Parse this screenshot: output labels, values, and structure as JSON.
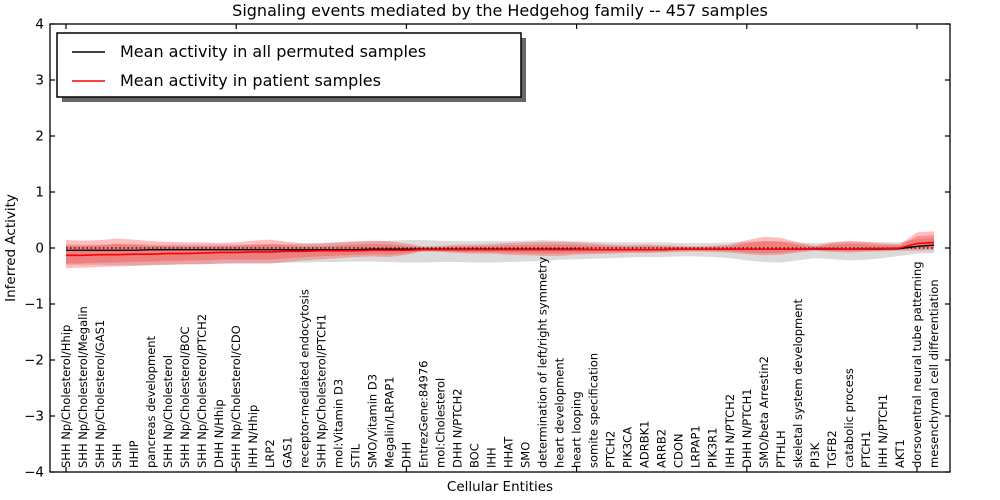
{
  "legend": {
    "entries": [
      {
        "label": "Mean activity in all permuted samples",
        "color": "#000000"
      },
      {
        "label": "Mean activity in patient samples",
        "color": "#ff0000"
      }
    ]
  },
  "colors": {
    "patient_line": "#ff0000",
    "permuted_line": "#000000",
    "patient_band": "#ff3333",
    "permuted_band": "#999999",
    "axis": "#000000",
    "background": "#ffffff"
  },
  "chart_data": {
    "type": "line",
    "title": "Signaling events mediated by the Hedgehog family -- 457 samples",
    "xlabel": "Cellular Entities",
    "ylabel": "Inferred Activity",
    "ylim": [
      -4,
      4
    ],
    "ytick_labels": [
      "4",
      "3",
      "2",
      "1",
      "0",
      "−1",
      "−2",
      "−3",
      "−4"
    ],
    "ytick_values": [
      4,
      3,
      2,
      1,
      0,
      -1,
      -2,
      -3,
      -4
    ],
    "xtick_major_indices": [
      0,
      10,
      20,
      30,
      40,
      50
    ],
    "grid": false,
    "legend_position": "upper left",
    "zero_line": {
      "style": "dotted",
      "color": "#000000",
      "y": 0
    },
    "categories": [
      "SHH Np/Cholesterol/Hhip",
      "SHH Np/Cholesterol/Megalin",
      "SHH Np/Cholesterol/GAS1",
      "SHH",
      "HHIP",
      "pancreas development",
      "SHH Np/Cholesterol",
      "SHH Np/Cholesterol/BOC",
      "SHH Np/Cholesterol/PTCH2",
      "DHH N/Hhip",
      "SHH Np/Cholesterol/CDO",
      "IHH N/Hhip",
      "LRP2",
      "GAS1",
      "receptor-mediated endocytosis",
      "SHH Np/Cholesterol/PTCH1",
      "mol:Vitamin D3",
      "STIL",
      "SMO/Vitamin D3",
      "Megalin/LRPAP1",
      "DHH",
      "EntrezGene:84976",
      "mol:Cholesterol",
      "DHH N/PTCH2",
      "BOC",
      "IHH",
      "HHAT",
      "SMO",
      "determination of left/right symmetry",
      "heart development",
      "heart looping",
      "somite specification",
      "PTCH2",
      "PIK3CA",
      "ADRBK1",
      "ARRB2",
      "CDON",
      "LRPAP1",
      "PIK3R1",
      "IHH N/PTCH2",
      "DHH N/PTCH1",
      "SMO/beta Arrestin2",
      "PTHLH",
      "skeletal system development",
      "PI3K",
      "TGFB2",
      "catabolic process",
      "PTCH1",
      "IHH N/PTCH1",
      "AKT1",
      "dorsoventral neural tube patterning",
      "mesenchymal cell differentiation"
    ],
    "series": [
      {
        "name": "Mean activity in all permuted samples",
        "color": "#000000",
        "values": [
          -0.04,
          -0.04,
          -0.04,
          -0.04,
          -0.04,
          -0.03,
          -0.03,
          -0.03,
          -0.03,
          -0.03,
          -0.03,
          -0.03,
          -0.03,
          -0.03,
          -0.03,
          -0.03,
          -0.03,
          -0.03,
          -0.02,
          -0.02,
          -0.02,
          -0.02,
          -0.02,
          -0.02,
          -0.02,
          -0.02,
          -0.02,
          -0.02,
          -0.02,
          -0.02,
          -0.02,
          -0.03,
          -0.03,
          -0.03,
          -0.03,
          -0.03,
          -0.02,
          -0.02,
          -0.02,
          -0.02,
          -0.02,
          -0.02,
          -0.02,
          -0.02,
          -0.02,
          -0.02,
          -0.02,
          -0.02,
          -0.02,
          -0.01,
          0.03,
          0.05
        ]
      },
      {
        "name": "Mean activity in patient samples",
        "color": "#ff0000",
        "values": [
          -0.13,
          -0.13,
          -0.12,
          -0.12,
          -0.11,
          -0.11,
          -0.1,
          -0.1,
          -0.09,
          -0.08,
          -0.08,
          -0.07,
          -0.07,
          -0.06,
          -0.06,
          -0.05,
          -0.05,
          -0.05,
          -0.04,
          -0.04,
          -0.04,
          -0.03,
          -0.03,
          -0.03,
          -0.03,
          -0.03,
          -0.03,
          -0.03,
          -0.03,
          -0.03,
          -0.03,
          -0.03,
          -0.03,
          -0.03,
          -0.03,
          -0.03,
          -0.02,
          -0.02,
          -0.02,
          -0.02,
          -0.02,
          -0.02,
          -0.02,
          -0.02,
          -0.01,
          -0.01,
          -0.02,
          -0.01,
          -0.01,
          0.0,
          0.08,
          0.1
        ]
      }
    ],
    "bands": [
      {
        "name": "permuted-sample-range",
        "color": "#999999",
        "opacity": 0.35,
        "upper": [
          0.06,
          0.06,
          0.06,
          0.07,
          0.07,
          0.06,
          0.06,
          0.06,
          0.06,
          0.06,
          0.06,
          0.06,
          0.06,
          0.07,
          0.08,
          0.09,
          0.1,
          0.11,
          0.12,
          0.13,
          0.14,
          0.14,
          0.13,
          0.12,
          0.12,
          0.12,
          0.12,
          0.13,
          0.14,
          0.13,
          0.12,
          0.11,
          0.1,
          0.1,
          0.1,
          0.1,
          0.09,
          0.09,
          0.09,
          0.1,
          0.11,
          0.12,
          0.12,
          0.1,
          0.09,
          0.1,
          0.11,
          0.11,
          0.1,
          0.1,
          0.16,
          0.18
        ],
        "lower": [
          -0.3,
          -0.3,
          -0.3,
          -0.31,
          -0.31,
          -0.3,
          -0.3,
          -0.29,
          -0.29,
          -0.28,
          -0.28,
          -0.27,
          -0.27,
          -0.26,
          -0.26,
          -0.25,
          -0.25,
          -0.24,
          -0.24,
          -0.25,
          -0.26,
          -0.26,
          -0.25,
          -0.25,
          -0.26,
          -0.26,
          -0.25,
          -0.24,
          -0.23,
          -0.21,
          -0.2,
          -0.19,
          -0.18,
          -0.17,
          -0.16,
          -0.16,
          -0.15,
          -0.15,
          -0.16,
          -0.18,
          -0.22,
          -0.25,
          -0.26,
          -0.22,
          -0.18,
          -0.2,
          -0.22,
          -0.21,
          -0.18,
          -0.14,
          -0.1,
          -0.09
        ]
      },
      {
        "name": "patient-sample-range",
        "color": "#ff3333",
        "opacity": 0.32,
        "inner_fraction": 0.65,
        "upper": [
          0.14,
          0.13,
          0.14,
          0.17,
          0.15,
          0.12,
          0.11,
          0.1,
          0.1,
          0.09,
          0.1,
          0.13,
          0.15,
          0.11,
          0.08,
          0.08,
          0.1,
          0.12,
          0.13,
          0.12,
          0.08,
          0.03,
          0.04,
          0.06,
          0.06,
          0.07,
          0.09,
          0.1,
          0.11,
          0.11,
          0.1,
          0.08,
          0.06,
          0.05,
          0.06,
          0.05,
          0.04,
          0.03,
          0.04,
          0.06,
          0.14,
          0.2,
          0.18,
          0.1,
          0.04,
          0.1,
          0.13,
          0.11,
          0.08,
          0.07,
          0.28,
          0.3
        ],
        "lower": [
          -0.36,
          -0.35,
          -0.34,
          -0.33,
          -0.32,
          -0.31,
          -0.3,
          -0.29,
          -0.29,
          -0.28,
          -0.27,
          -0.28,
          -0.28,
          -0.25,
          -0.22,
          -0.2,
          -0.18,
          -0.16,
          -0.15,
          -0.16,
          -0.12,
          -0.06,
          -0.07,
          -0.09,
          -0.1,
          -0.1,
          -0.12,
          -0.13,
          -0.14,
          -0.14,
          -0.12,
          -0.11,
          -0.1,
          -0.09,
          -0.09,
          -0.08,
          -0.07,
          -0.06,
          -0.07,
          -0.08,
          -0.11,
          -0.13,
          -0.12,
          -0.08,
          -0.05,
          -0.07,
          -0.08,
          -0.07,
          -0.06,
          -0.05,
          -0.05,
          -0.04
        ]
      }
    ]
  }
}
